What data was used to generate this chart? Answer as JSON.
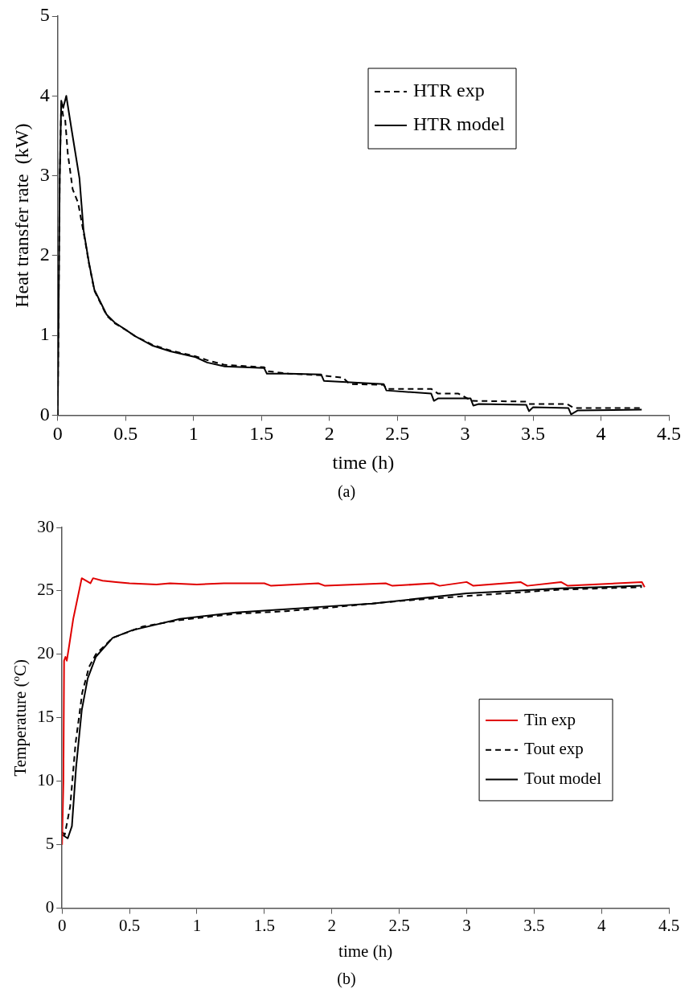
{
  "chart_data": [
    {
      "type": "line",
      "xlabel": "time (h)",
      "ylabel": "Heat transfer rate  (kW)",
      "xlim": [
        0,
        4.5
      ],
      "xticks": [
        0,
        0.5,
        1,
        1.5,
        2,
        2.5,
        3,
        3.5,
        4,
        4.5
      ],
      "ylim": [
        0,
        5
      ],
      "yticks": [
        0,
        1,
        2,
        3,
        4,
        5
      ],
      "legend": "top right",
      "marker": "none",
      "annotations": [
        "(a)"
      ],
      "series": [
        {
          "name": "HTR exp",
          "color": "#000000",
          "line_style": "dashed",
          "x": [
            0,
            0.015,
            0.026,
            0.04,
            0.055,
            0.074,
            0.11,
            0.15,
            0.2,
            0.23,
            0.27,
            0.36,
            0.42,
            0.5,
            0.57,
            0.7,
            0.83,
            1.01,
            1.1,
            1.23,
            1.52,
            1.55,
            1.7,
            1.94,
            2.1,
            2.15,
            2.4,
            2.42,
            2.75,
            2.8,
            2.95,
            3.05,
            3.45,
            3.47,
            3.75,
            3.8,
            4.3
          ],
          "values": [
            0,
            3.0,
            3.9,
            3.75,
            3.7,
            3.28,
            2.83,
            2.66,
            2.2,
            1.9,
            1.56,
            1.25,
            1.15,
            1.07,
            0.99,
            0.88,
            0.81,
            0.74,
            0.69,
            0.63,
            0.6,
            0.55,
            0.52,
            0.5,
            0.47,
            0.39,
            0.38,
            0.33,
            0.33,
            0.27,
            0.27,
            0.18,
            0.17,
            0.14,
            0.14,
            0.09,
            0.09
          ]
        },
        {
          "name": "HTR model",
          "color": "#000000",
          "line_style": "solid",
          "x": [
            0,
            0.015,
            0.026,
            0.04,
            0.063,
            0.1,
            0.16,
            0.19,
            0.23,
            0.27,
            0.36,
            0.42,
            0.5,
            0.57,
            0.7,
            0.83,
            1.01,
            1.1,
            1.23,
            1.52,
            1.54,
            1.7,
            1.94,
            1.96,
            2.4,
            2.42,
            2.75,
            2.77,
            2.8,
            3.04,
            3.06,
            3.1,
            3.45,
            3.47,
            3.5,
            3.76,
            3.78,
            3.83,
            4.3
          ],
          "values": [
            0,
            3.0,
            3.94,
            3.85,
            4.0,
            3.6,
            2.97,
            2.32,
            1.91,
            1.57,
            1.26,
            1.16,
            1.07,
            0.99,
            0.87,
            0.8,
            0.73,
            0.66,
            0.61,
            0.59,
            0.52,
            0.52,
            0.51,
            0.43,
            0.39,
            0.31,
            0.27,
            0.18,
            0.21,
            0.21,
            0.12,
            0.14,
            0.13,
            0.05,
            0.1,
            0.09,
            0.01,
            0.06,
            0.07
          ]
        }
      ]
    },
    {
      "type": "line",
      "xlabel": "time (h)",
      "ylabel": "Temperature (ºC)",
      "xlim": [
        0,
        4.5
      ],
      "xticks": [
        0,
        0.5,
        1,
        1.5,
        2,
        2.5,
        3,
        3.5,
        4,
        4.5
      ],
      "ylim": [
        0,
        30
      ],
      "yticks": [
        0,
        5,
        10,
        15,
        20,
        25,
        30
      ],
      "legend": "right",
      "marker": "none",
      "annotations": [
        "(b)"
      ],
      "series": [
        {
          "name": "Tin exp",
          "color": "#e00000",
          "line_style": "solid",
          "x": [
            0,
            0.01,
            0.015,
            0.025,
            0.035,
            0.05,
            0.083,
            0.146,
            0.21,
            0.23,
            0.3,
            0.4,
            0.5,
            0.7,
            0.8,
            1.0,
            1.2,
            1.5,
            1.55,
            1.9,
            1.95,
            2.4,
            2.45,
            2.75,
            2.8,
            3.0,
            3.05,
            3.4,
            3.45,
            3.7,
            3.75,
            4.3,
            4.32
          ],
          "values": [
            5,
            10,
            19.5,
            19.8,
            19.5,
            20.5,
            22.8,
            26.0,
            25.6,
            26.0,
            25.8,
            25.7,
            25.6,
            25.5,
            25.6,
            25.5,
            25.6,
            25.6,
            25.4,
            25.6,
            25.4,
            25.6,
            25.4,
            25.6,
            25.4,
            25.7,
            25.4,
            25.7,
            25.4,
            25.7,
            25.4,
            25.7,
            25.3
          ]
        },
        {
          "name": "Tout exp",
          "color": "#000000",
          "line_style": "dashed",
          "x": [
            0,
            0.02,
            0.06,
            0.1,
            0.15,
            0.2,
            0.25,
            0.375,
            0.6,
            0.875,
            1.29,
            1.66,
            2.0,
            2.5,
            3.0,
            3.7,
            4.3
          ],
          "values": [
            6.0,
            5.8,
            8.0,
            13.0,
            17.0,
            19.0,
            20.0,
            21.3,
            22.2,
            22.7,
            23.2,
            23.4,
            23.7,
            24.2,
            24.6,
            25.1,
            25.3
          ]
        },
        {
          "name": "Tout model",
          "color": "#000000",
          "line_style": "solid",
          "x": [
            0,
            0.042,
            0.073,
            0.104,
            0.146,
            0.19,
            0.25,
            0.375,
            0.52,
            0.875,
            1.29,
            1.66,
            2.0,
            2.3,
            3.0,
            3.7,
            4.3
          ],
          "values": [
            5.8,
            5.5,
            6.46,
            11.1,
            15.6,
            18.1,
            19.8,
            21.3,
            21.9,
            22.8,
            23.3,
            23.55,
            23.8,
            24.0,
            24.8,
            25.2,
            25.4
          ]
        }
      ]
    }
  ]
}
